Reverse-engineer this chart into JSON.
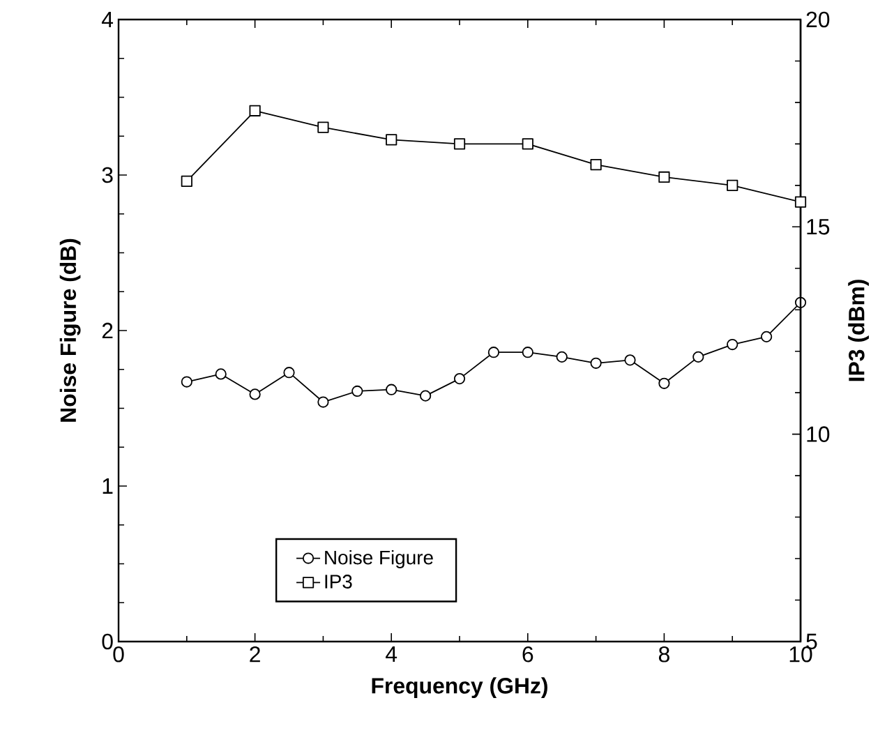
{
  "chart_data": {
    "type": "line",
    "xlabel": "Frequency   (GHz)",
    "ylabel": "Noise   Figure   (dB)",
    "y2label": "IP3   (dBm)",
    "xlim": [
      0,
      10
    ],
    "xticks": [
      0,
      2,
      4,
      6,
      8,
      10
    ],
    "ylim": [
      0,
      4
    ],
    "yticks": [
      0,
      1,
      2,
      3,
      4
    ],
    "y2lim": [
      5,
      20
    ],
    "y2ticks": [
      5,
      10,
      15,
      20
    ],
    "legend": "bottom",
    "grid": false,
    "line_style": "solid",
    "series": [
      {
        "name": "Noise Figure",
        "color": "#000000",
        "marker": "circle",
        "x": [
          1,
          1.5,
          2,
          2.5,
          3,
          3.5,
          4,
          4.5,
          5,
          5.5,
          6,
          6.5,
          7,
          7.5,
          8,
          8.5,
          9,
          9.5,
          10
        ],
        "values": [
          1.67,
          1.72,
          1.59,
          1.73,
          1.54,
          1.61,
          1.62,
          1.58,
          1.69,
          1.86,
          1.86,
          1.83,
          1.79,
          1.81,
          1.66,
          1.83,
          1.91,
          1.96,
          2.18
        ]
      },
      {
        "name": "IP3",
        "color": "#000000",
        "marker": "square",
        "axis": "y2",
        "x": [
          1,
          2,
          3,
          4,
          5,
          6,
          7,
          8,
          9,
          10
        ],
        "values": [
          16.1,
          17.8,
          17.4,
          17.1,
          17.0,
          17.0,
          16.5,
          16.2,
          16.0,
          15.6
        ]
      }
    ]
  }
}
